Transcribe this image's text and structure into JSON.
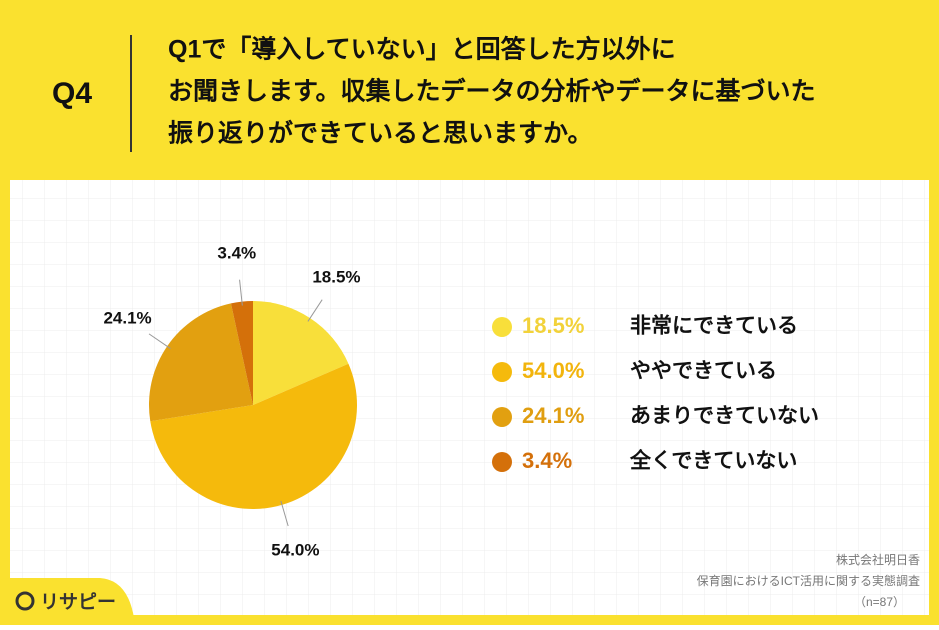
{
  "header": {
    "label": "Q4",
    "lines": [
      "Q1で「導入していない」と回答した方以外に",
      "お聞きします。収集したデータの分析やデータに基づいた",
      "振り返りができていると思いますか。"
    ]
  },
  "chart_data": {
    "type": "pie",
    "categories": [
      "非常にできている",
      "ややできている",
      "あまりできていない",
      "全くできていない"
    ],
    "values": [
      18.5,
      54.0,
      24.1,
      3.4
    ],
    "value_labels": [
      "18.5%",
      "54.0%",
      "24.1%",
      "3.4%"
    ],
    "colors": [
      "#F8DF3A",
      "#F5BA0C",
      "#E2A010",
      "#D4700A"
    ],
    "label_colors": [
      "#F2D23A",
      "#F2B40C",
      "#E09E10",
      "#D4700A"
    ]
  },
  "source": [
    "株式会社明日香",
    "保育園におけるICT活用に関する実態調査",
    "（n=87）"
  ],
  "logo": "リサピー"
}
